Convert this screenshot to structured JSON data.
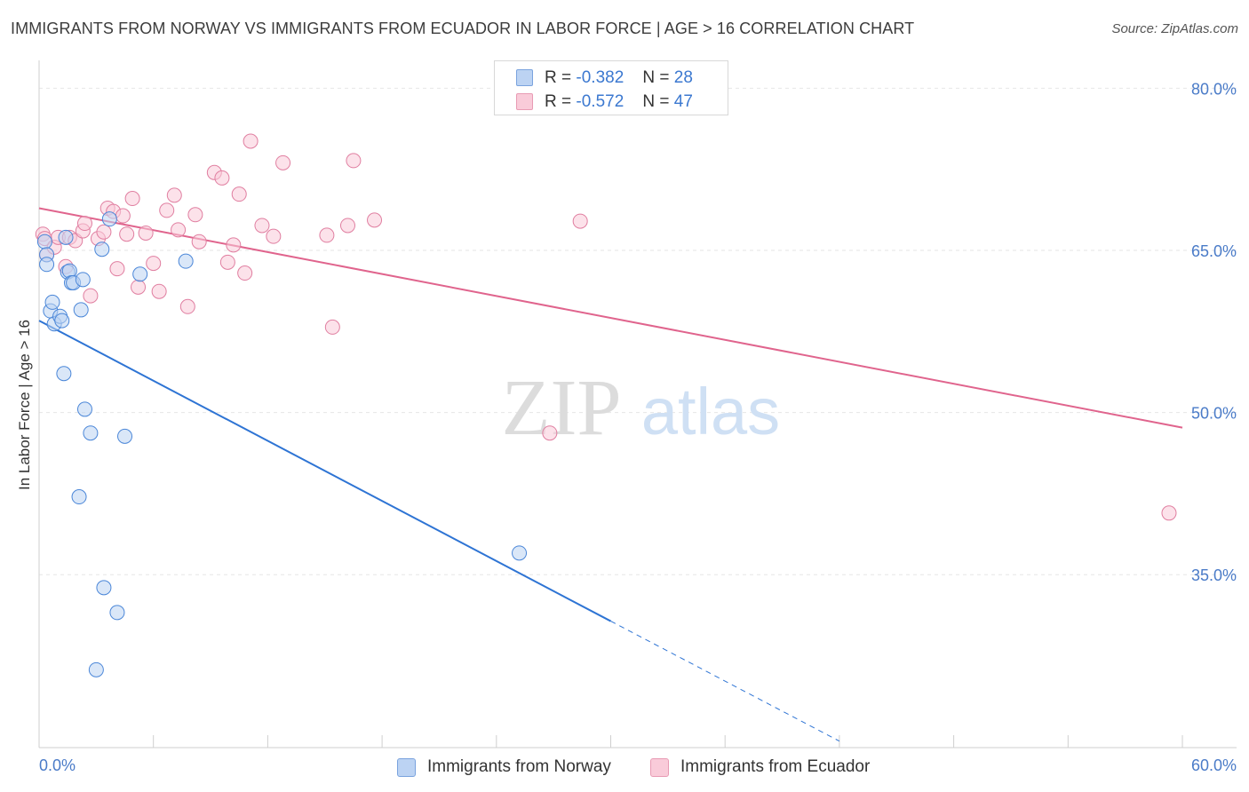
{
  "header": {
    "title": "IMMIGRANTS FROM NORWAY VS IMMIGRANTS FROM ECUADOR IN LABOR FORCE | AGE > 16 CORRELATION CHART",
    "source": "Source: ZipAtlas.com"
  },
  "colors": {
    "norway": "#4a86d8",
    "norway_fill": "#bcd3f3",
    "norway_line": "#2e74d4",
    "ecuador": "#e07ea0",
    "ecuador_fill": "#f9cbd9",
    "ecuador_line": "#e0648d",
    "grid": "#e6e6e6",
    "axis_text": "#4a7bc8"
  },
  "chart_data": {
    "type": "scatter",
    "title": "IMMIGRANTS FROM NORWAY VS IMMIGRANTS FROM ECUADOR IN LABOR FORCE | AGE > 16 CORRELATION CHART",
    "xlabel": "",
    "ylabel": "In Labor Force | Age > 16",
    "xlim": [
      0,
      60
    ],
    "ylim": [
      19,
      82
    ],
    "x_tick_labels": [
      "0.0%",
      "60.0%"
    ],
    "y_ticks": [
      80,
      65,
      50,
      35
    ],
    "y_tick_labels": [
      "80.0%",
      "65.0%",
      "50.0%",
      "35.0%"
    ],
    "watermark": {
      "zip": "ZIP",
      "atlas": "atlas"
    },
    "legend": [
      {
        "r_label": "R =",
        "r_value": "-0.382",
        "n_label": "N =",
        "n_value": "28"
      },
      {
        "r_label": "R =",
        "r_value": "-0.572",
        "n_label": "N =",
        "n_value": "47"
      }
    ],
    "series": [
      {
        "name": "Immigrants from Norway",
        "r": -0.382,
        "n": 28,
        "trend": {
          "x0": 0,
          "y0": 58.5,
          "x1": 30,
          "y1": 30.7,
          "dashed_to_x": 42,
          "dashed_to_y": 19.6
        },
        "points": [
          [
            0.3,
            65.8
          ],
          [
            0.4,
            64.6
          ],
          [
            0.4,
            63.7
          ],
          [
            0.6,
            59.4
          ],
          [
            0.7,
            60.2
          ],
          [
            0.8,
            58.2
          ],
          [
            1.1,
            58.9
          ],
          [
            1.2,
            58.5
          ],
          [
            1.3,
            53.6
          ],
          [
            1.4,
            66.2
          ],
          [
            1.5,
            63.0
          ],
          [
            1.6,
            63.1
          ],
          [
            1.7,
            62.0
          ],
          [
            1.8,
            62.0
          ],
          [
            2.1,
            42.2
          ],
          [
            2.2,
            59.5
          ],
          [
            2.3,
            62.3
          ],
          [
            2.4,
            50.3
          ],
          [
            2.7,
            48.1
          ],
          [
            3.0,
            26.2
          ],
          [
            3.3,
            65.1
          ],
          [
            3.4,
            33.8
          ],
          [
            3.7,
            67.9
          ],
          [
            4.1,
            31.5
          ],
          [
            4.5,
            47.8
          ],
          [
            5.3,
            62.8
          ],
          [
            7.7,
            64.0
          ],
          [
            25.2,
            37.0
          ]
        ]
      },
      {
        "name": "Immigrants from Ecuador",
        "r": -0.572,
        "n": 47,
        "trend": {
          "x0": 0,
          "y0": 68.9,
          "x1": 60,
          "y1": 48.6
        },
        "points": [
          [
            0.2,
            66.5
          ],
          [
            0.3,
            66.1
          ],
          [
            0.4,
            64.6
          ],
          [
            0.8,
            65.3
          ],
          [
            1.0,
            66.2
          ],
          [
            1.4,
            63.5
          ],
          [
            1.6,
            66.2
          ],
          [
            1.9,
            65.9
          ],
          [
            2.3,
            66.8
          ],
          [
            2.4,
            67.5
          ],
          [
            2.7,
            60.8
          ],
          [
            3.1,
            66.1
          ],
          [
            3.4,
            66.7
          ],
          [
            3.6,
            68.9
          ],
          [
            3.9,
            68.6
          ],
          [
            4.1,
            63.3
          ],
          [
            4.4,
            68.2
          ],
          [
            4.6,
            66.5
          ],
          [
            4.9,
            69.8
          ],
          [
            5.2,
            61.6
          ],
          [
            5.6,
            66.6
          ],
          [
            6.0,
            63.8
          ],
          [
            6.3,
            61.2
          ],
          [
            6.7,
            68.7
          ],
          [
            7.1,
            70.1
          ],
          [
            7.3,
            66.9
          ],
          [
            7.8,
            59.8
          ],
          [
            8.2,
            68.3
          ],
          [
            8.4,
            65.8
          ],
          [
            9.2,
            72.2
          ],
          [
            9.6,
            71.7
          ],
          [
            9.9,
            63.9
          ],
          [
            10.2,
            65.5
          ],
          [
            10.5,
            70.2
          ],
          [
            10.8,
            62.9
          ],
          [
            11.1,
            75.1
          ],
          [
            11.7,
            67.3
          ],
          [
            12.3,
            66.3
          ],
          [
            12.8,
            73.1
          ],
          [
            15.1,
            66.4
          ],
          [
            15.4,
            57.9
          ],
          [
            16.2,
            67.3
          ],
          [
            16.5,
            73.3
          ],
          [
            17.6,
            67.8
          ],
          [
            26.8,
            48.1
          ],
          [
            28.4,
            67.7
          ],
          [
            59.3,
            40.7
          ]
        ]
      }
    ]
  },
  "legend_bottom": {
    "norway_label": "Immigrants from Norway",
    "ecuador_label": "Immigrants from Ecuador"
  }
}
